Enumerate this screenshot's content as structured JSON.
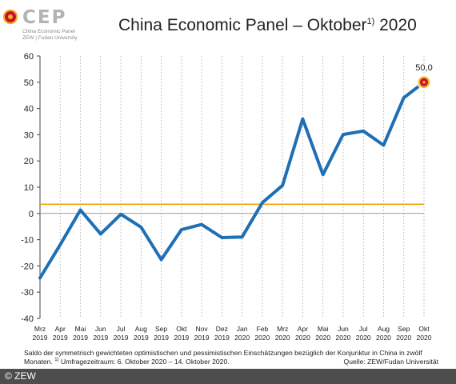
{
  "logo": {
    "wordmark": "CEP",
    "line1": "China Economic Panel",
    "line2": "ZEW | Fudan University"
  },
  "header": {
    "title_main": "China Economic Panel – Oktober",
    "title_sup": "1)",
    "title_year": " 2020"
  },
  "footer": {
    "footnote_line1": "Saldo der symmetrisch gewichteten optimistischen und pessimistischen Einschätzungen bezüglich der Konjunktur in China in zwölf",
    "footnote_line2_a": "Monaten. ",
    "footnote_sup": "1)",
    "footnote_line2_b": " Umfragezeitraum: 6. Oktober 2020 – 14. Oktober 2020.",
    "source": "Quelle: ZEW/Fudan Universität",
    "copyright": "© ZEW"
  },
  "colors": {
    "line": "#1f6fb5",
    "reference_line": "#f0a30a",
    "zero_line": "#999999",
    "grid": "#bbbbbb",
    "marker_fill": "#c8102e",
    "marker_ring": "#f0b323",
    "copyright_bar": "#4d4d4d"
  },
  "chart_data": {
    "type": "line",
    "categories": [
      [
        "Mrz",
        "2019"
      ],
      [
        "Apr",
        "2019"
      ],
      [
        "Mai",
        "2019"
      ],
      [
        "Jun",
        "2019"
      ],
      [
        "Jul",
        "2019"
      ],
      [
        "Aug",
        "2019"
      ],
      [
        "Sep",
        "2019"
      ],
      [
        "Okt",
        "2019"
      ],
      [
        "Nov",
        "2019"
      ],
      [
        "Dez",
        "2019"
      ],
      [
        "Jan",
        "2020"
      ],
      [
        "Feb",
        "2020"
      ],
      [
        "Mrz",
        "2020"
      ],
      [
        "Apr",
        "2020"
      ],
      [
        "Mai",
        "2020"
      ],
      [
        "Jun",
        "2020"
      ],
      [
        "Jul",
        "2020"
      ],
      [
        "Aug",
        "2020"
      ],
      [
        "Sep",
        "2020"
      ],
      [
        "Okt",
        "2020"
      ]
    ],
    "values": [
      -24.6,
      -11.9,
      1.3,
      -7.8,
      -0.3,
      -5.2,
      -17.6,
      -6.2,
      -4.2,
      -9.2,
      -9.0,
      4.1,
      10.7,
      36.0,
      14.8,
      30.1,
      31.4,
      26.0,
      44.1,
      50.0
    ],
    "reference_value": 3.5,
    "last_value_label": "50,0",
    "yticks": [
      60,
      50,
      40,
      30,
      20,
      10,
      0,
      -10,
      -20,
      -30,
      -40
    ],
    "ylim": [
      -40,
      60
    ],
    "grid": "vertical-dashed",
    "legend": "none"
  }
}
